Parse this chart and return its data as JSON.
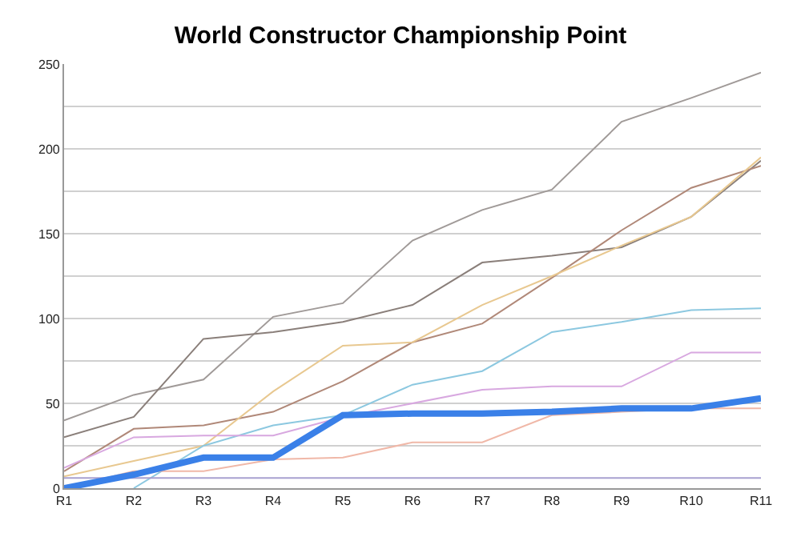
{
  "chart_data": {
    "type": "line",
    "title": "World Constructor Championship Point",
    "categories": [
      "R1",
      "R2",
      "R3",
      "R4",
      "R5",
      "R6",
      "R7",
      "R8",
      "R9",
      "R10",
      "R11"
    ],
    "series": [
      {
        "color": "#a09a98",
        "values": [
          40,
          55,
          64,
          101,
          109,
          146,
          164,
          176,
          216,
          230,
          245
        ]
      },
      {
        "color": "#8a7f7a",
        "values": [
          30,
          42,
          88,
          92,
          98,
          108,
          133,
          137,
          142,
          160,
          193
        ]
      },
      {
        "color": "#b08878",
        "values": [
          10,
          35,
          37,
          45,
          63,
          86,
          97,
          124,
          152,
          177,
          190
        ]
      },
      {
        "color": "#e8c890",
        "values": [
          7,
          16,
          25,
          57,
          84,
          86,
          108,
          125,
          143,
          160,
          195
        ]
      },
      {
        "color": "#8cc8e0",
        "values": [
          null,
          0,
          25,
          37,
          43,
          61,
          69,
          92,
          98,
          105,
          106
        ]
      },
      {
        "color": "#d8a8e0",
        "values": [
          12,
          30,
          31,
          31,
          42,
          null,
          58,
          60,
          60,
          80,
          80
        ]
      },
      {
        "color": "#f0b8a8",
        "values": [
          0,
          10,
          10,
          17,
          18,
          27,
          27,
          43,
          45,
          47,
          47
        ]
      },
      {
        "color": "#a8a0d0",
        "values": [
          6,
          6,
          6,
          6,
          6,
          6,
          6,
          6,
          6,
          6,
          6
        ]
      },
      {
        "color": "#3a80e8",
        "values": [
          0,
          8,
          18,
          18,
          43,
          44,
          44,
          45,
          47,
          47,
          53
        ]
      }
    ],
    "ylim": [
      0,
      250
    ],
    "yticks": [
      0,
      {
        "value": 25,
        "label": null
      },
      50,
      {
        "value": 75,
        "label": null
      },
      100,
      {
        "value": 125,
        "label": null
      },
      150,
      {
        "value": 175,
        "label": null
      },
      200,
      {
        "value": 225,
        "label": null
      },
      250
    ],
    "grid": "y",
    "marker": "none",
    "line_style": "solid"
  }
}
